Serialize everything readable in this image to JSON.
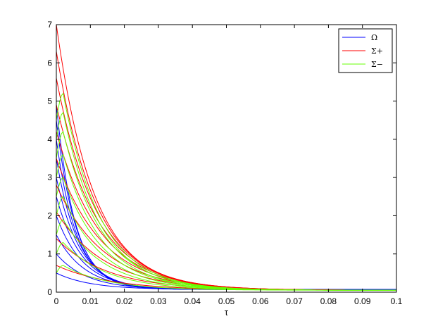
{
  "chart_data": {
    "type": "line",
    "title": "",
    "xlabel": "τ",
    "ylabel": "",
    "xlim": [
      0,
      0.1
    ],
    "ylim": [
      0,
      7
    ],
    "xticks": [
      "0",
      "0.01",
      "0.02",
      "0.03",
      "0.04",
      "0.05",
      "0.06",
      "0.07",
      "0.08",
      "0.09",
      "0.1"
    ],
    "yticks": [
      "0",
      "1",
      "2",
      "3",
      "4",
      "5",
      "6",
      "7"
    ],
    "grid": false,
    "legend_position": "top-right",
    "legend": [
      {
        "label": "Ω",
        "color": "#0000ff"
      },
      {
        "label": "Σ+",
        "color": "#ff0000"
      },
      {
        "label": "Σ−",
        "color": "#66ff00"
      }
    ],
    "series": [
      {
        "group": "Ω",
        "color": "#0000ff",
        "y0": 0.5,
        "peak": 0.5,
        "tpeak": 0,
        "decay": 0.01,
        "plateau": 0.07
      },
      {
        "group": "Ω",
        "color": "#0000ff",
        "y0": 1.0,
        "peak": 1.0,
        "tpeak": 0,
        "decay": 0.009,
        "plateau": 0.07
      },
      {
        "group": "Ω",
        "color": "#0000ff",
        "y0": 1.5,
        "peak": 1.5,
        "tpeak": 0,
        "decay": 0.0085,
        "plateau": 0.07
      },
      {
        "group": "Ω",
        "color": "#0000ff",
        "y0": 2.0,
        "peak": 2.0,
        "tpeak": 0,
        "decay": 0.008,
        "plateau": 0.07
      },
      {
        "group": "Ω",
        "color": "#0000ff",
        "y0": 2.5,
        "peak": 2.5,
        "tpeak": 0,
        "decay": 0.0075,
        "plateau": 0.07
      },
      {
        "group": "Ω",
        "color": "#0000ff",
        "y0": 3.0,
        "peak": 3.0,
        "tpeak": 0,
        "decay": 0.007,
        "plateau": 0.07
      },
      {
        "group": "Ω",
        "color": "#0000ff",
        "y0": 3.5,
        "peak": 3.5,
        "tpeak": 0,
        "decay": 0.0065,
        "plateau": 0.07
      },
      {
        "group": "Ω",
        "color": "#0000ff",
        "y0": 4.0,
        "peak": 4.0,
        "tpeak": 0,
        "decay": 0.006,
        "plateau": 0.07
      },
      {
        "group": "Ω",
        "color": "#0000ff",
        "y0": 4.5,
        "peak": 4.5,
        "tpeak": 0,
        "decay": 0.0058,
        "plateau": 0.07
      },
      {
        "group": "Ω",
        "color": "#0000ff",
        "y0": 4.9,
        "peak": 4.9,
        "tpeak": 0,
        "decay": 0.0055,
        "plateau": 0.07
      },
      {
        "group": "Σ+",
        "color": "#ff0000",
        "y0": 0.7,
        "peak": 0.7,
        "tpeak": 0,
        "decay": 0.016,
        "plateau": 0.05
      },
      {
        "group": "Σ+",
        "color": "#ff0000",
        "y0": 1.4,
        "peak": 1.4,
        "tpeak": 0,
        "decay": 0.015,
        "plateau": 0.05
      },
      {
        "group": "Σ+",
        "color": "#ff0000",
        "y0": 2.1,
        "peak": 2.1,
        "tpeak": 0,
        "decay": 0.0145,
        "plateau": 0.05
      },
      {
        "group": "Σ+",
        "color": "#ff0000",
        "y0": 2.8,
        "peak": 2.8,
        "tpeak": 0,
        "decay": 0.014,
        "plateau": 0.05
      },
      {
        "group": "Σ+",
        "color": "#ff0000",
        "y0": 3.5,
        "peak": 3.5,
        "tpeak": 0,
        "decay": 0.0135,
        "plateau": 0.05
      },
      {
        "group": "Σ+",
        "color": "#ff0000",
        "y0": 4.2,
        "peak": 4.2,
        "tpeak": 0,
        "decay": 0.013,
        "plateau": 0.05
      },
      {
        "group": "Σ+",
        "color": "#ff0000",
        "y0": 4.9,
        "peak": 4.9,
        "tpeak": 0,
        "decay": 0.0125,
        "plateau": 0.05
      },
      {
        "group": "Σ+",
        "color": "#ff0000",
        "y0": 5.6,
        "peak": 5.6,
        "tpeak": 0,
        "decay": 0.012,
        "plateau": 0.05
      },
      {
        "group": "Σ+",
        "color": "#ff0000",
        "y0": 6.3,
        "peak": 6.3,
        "tpeak": 0,
        "decay": 0.0115,
        "plateau": 0.05
      },
      {
        "group": "Σ+",
        "color": "#ff0000",
        "y0": 7.0,
        "peak": 7.0,
        "tpeak": 0,
        "decay": 0.011,
        "plateau": 0.05
      },
      {
        "group": "Σ−",
        "color": "#66ff00",
        "y0": 0.5,
        "peak": 0.7,
        "tpeak": 0.002,
        "decay": 0.013,
        "plateau": 0.05
      },
      {
        "group": "Σ−",
        "color": "#66ff00",
        "y0": 1.0,
        "peak": 1.3,
        "tpeak": 0.002,
        "decay": 0.013,
        "plateau": 0.05
      },
      {
        "group": "Σ−",
        "color": "#66ff00",
        "y0": 1.5,
        "peak": 1.9,
        "tpeak": 0.002,
        "decay": 0.0125,
        "plateau": 0.05
      },
      {
        "group": "Σ−",
        "color": "#66ff00",
        "y0": 2.0,
        "peak": 2.5,
        "tpeak": 0.002,
        "decay": 0.012,
        "plateau": 0.05
      },
      {
        "group": "Σ−",
        "color": "#66ff00",
        "y0": 2.5,
        "peak": 3.0,
        "tpeak": 0.002,
        "decay": 0.012,
        "plateau": 0.05
      },
      {
        "group": "Σ−",
        "color": "#66ff00",
        "y0": 3.0,
        "peak": 3.6,
        "tpeak": 0.002,
        "decay": 0.0115,
        "plateau": 0.05
      },
      {
        "group": "Σ−",
        "color": "#66ff00",
        "y0": 3.5,
        "peak": 4.2,
        "tpeak": 0.002,
        "decay": 0.0115,
        "plateau": 0.05
      },
      {
        "group": "Σ−",
        "color": "#66ff00",
        "y0": 4.0,
        "peak": 4.7,
        "tpeak": 0.002,
        "decay": 0.011,
        "plateau": 0.05
      },
      {
        "group": "Σ−",
        "color": "#66ff00",
        "y0": 4.5,
        "peak": 5.2,
        "tpeak": 0.002,
        "decay": 0.011,
        "plateau": 0.05
      }
    ]
  }
}
